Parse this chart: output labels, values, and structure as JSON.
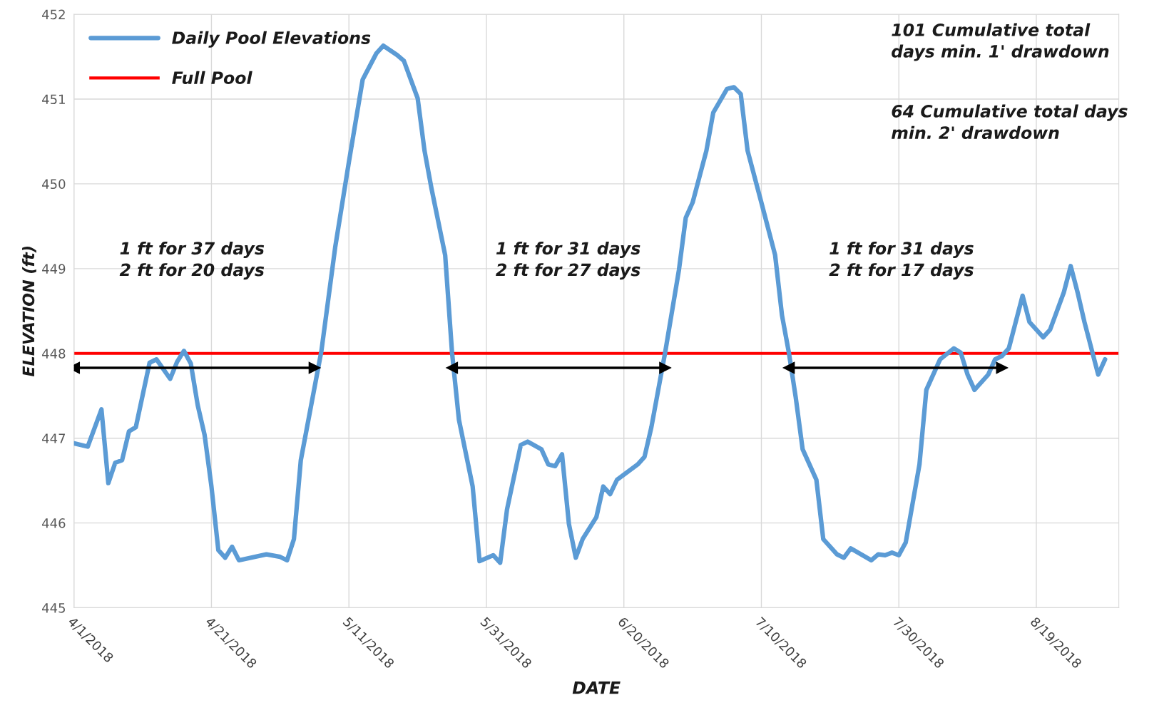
{
  "chart_data": {
    "type": "line",
    "xlabel": "DATE",
    "ylabel": "ELEVATION (ft)",
    "xlim": [
      "2018-04-01",
      "2018-08-31"
    ],
    "ylim": [
      445,
      452
    ],
    "yticks": [
      445,
      446,
      447,
      448,
      449,
      450,
      451,
      452
    ],
    "xticks": [
      {
        "value": "2018-04-01",
        "label": "4/1/2018"
      },
      {
        "value": "2018-04-21",
        "label": "4/21/2018"
      },
      {
        "value": "2018-05-11",
        "label": "5/11/2018"
      },
      {
        "value": "2018-05-31",
        "label": "5/31/2018"
      },
      {
        "value": "2018-06-20",
        "label": "6/20/2018"
      },
      {
        "value": "2018-07-10",
        "label": "7/10/2018"
      },
      {
        "value": "2018-07-30",
        "label": "7/30/2018"
      },
      {
        "value": "2018-08-19",
        "label": "8/19/2018"
      }
    ],
    "grid": true,
    "legend": "top left",
    "series": [
      {
        "name": "Daily Pool Elevations",
        "color": "#5b9bd5",
        "x": [
          "2018-04-01",
          "2018-04-03",
          "2018-04-05",
          "2018-04-06",
          "2018-04-07",
          "2018-04-08",
          "2018-04-09",
          "2018-04-10",
          "2018-04-12",
          "2018-04-13",
          "2018-04-15",
          "2018-04-16",
          "2018-04-17",
          "2018-04-18",
          "2018-04-19",
          "2018-04-20",
          "2018-04-21",
          "2018-04-22",
          "2018-04-23",
          "2018-04-24",
          "2018-04-25",
          "2018-04-29",
          "2018-05-01",
          "2018-05-02",
          "2018-05-03",
          "2018-05-04",
          "2018-05-07",
          "2018-05-09",
          "2018-05-11",
          "2018-05-13",
          "2018-05-15",
          "2018-05-16",
          "2018-05-18",
          "2018-05-19",
          "2018-05-21",
          "2018-05-22",
          "2018-05-23",
          "2018-05-25",
          "2018-05-26",
          "2018-05-27",
          "2018-05-29",
          "2018-05-30",
          "2018-06-01",
          "2018-06-02",
          "2018-06-03",
          "2018-06-05",
          "2018-06-06",
          "2018-06-08",
          "2018-06-09",
          "2018-06-10",
          "2018-06-11",
          "2018-06-12",
          "2018-06-13",
          "2018-06-14",
          "2018-06-16",
          "2018-06-17",
          "2018-06-18",
          "2018-06-19",
          "2018-06-22",
          "2018-06-23",
          "2018-06-24",
          "2018-06-26",
          "2018-06-28",
          "2018-06-29",
          "2018-06-30",
          "2018-07-02",
          "2018-07-03",
          "2018-07-05",
          "2018-07-06",
          "2018-07-07",
          "2018-07-08",
          "2018-07-10",
          "2018-07-12",
          "2018-07-13",
          "2018-07-14",
          "2018-07-15",
          "2018-07-16",
          "2018-07-18",
          "2018-07-19",
          "2018-07-21",
          "2018-07-22",
          "2018-07-23",
          "2018-07-26",
          "2018-07-27",
          "2018-07-28",
          "2018-07-29",
          "2018-07-30",
          "2018-07-31",
          "2018-08-02",
          "2018-08-03",
          "2018-08-05",
          "2018-08-07",
          "2018-08-08",
          "2018-08-09",
          "2018-08-10",
          "2018-08-12",
          "2018-08-13",
          "2018-08-14",
          "2018-08-15",
          "2018-08-16",
          "2018-08-17",
          "2018-08-18",
          "2018-08-20",
          "2018-08-21",
          "2018-08-23",
          "2018-08-24",
          "2018-08-25",
          "2018-08-26",
          "2018-08-28",
          "2018-08-29"
        ],
        "values": [
          446.94,
          446.9,
          447.34,
          446.47,
          446.71,
          446.74,
          447.08,
          447.13,
          447.89,
          447.93,
          447.7,
          447.9,
          448.03,
          447.88,
          447.39,
          447.04,
          446.43,
          445.68,
          445.59,
          445.72,
          445.56,
          445.63,
          445.6,
          445.56,
          445.81,
          446.74,
          448.03,
          449.25,
          450.26,
          451.23,
          451.54,
          451.63,
          451.52,
          451.45,
          451.01,
          450.39,
          449.95,
          449.16,
          448.01,
          447.22,
          446.43,
          445.55,
          445.62,
          445.53,
          446.16,
          446.92,
          446.96,
          446.87,
          446.69,
          446.67,
          446.81,
          445.99,
          445.59,
          445.81,
          446.07,
          446.43,
          446.34,
          446.51,
          446.69,
          446.78,
          447.13,
          448.01,
          448.98,
          449.6,
          449.78,
          450.39,
          450.84,
          451.12,
          451.14,
          451.06,
          450.39,
          449.78,
          449.16,
          448.45,
          448.01,
          447.48,
          446.87,
          446.51,
          445.81,
          445.63,
          445.59,
          445.7,
          445.56,
          445.63,
          445.62,
          445.65,
          445.62,
          445.77,
          446.69,
          447.57,
          447.93,
          448.06,
          448.01,
          447.75,
          447.57,
          447.75,
          447.93,
          447.97,
          448.06,
          448.37,
          448.68,
          448.37,
          448.19,
          448.28,
          448.72,
          449.03,
          448.72,
          448.37,
          447.75,
          447.93
        ]
      },
      {
        "type": "line",
        "color": "#000000",
        "marker": "triangle",
        "x": [
          "2018-04-01",
          "2018-05-06"
        ],
        "values": [
          447.83,
          447.83
        ]
      },
      {
        "type": "line",
        "color": "#000000",
        "marker": "triangle",
        "x": [
          "2018-05-26",
          "2018-06-26"
        ],
        "values": [
          447.83,
          447.83
        ]
      },
      {
        "type": "line",
        "color": "#000000",
        "marker": "triangle",
        "x": [
          "2018-07-14",
          "2018-08-14"
        ],
        "values": [
          447.83,
          447.83
        ]
      }
    ],
    "ref_lines": [
      {
        "axis": "y",
        "value": 448,
        "label": "Full Pool",
        "color": "#ff0000"
      }
    ],
    "annotations": [
      "1 ft for 37 days\n2 ft for 20 days",
      "1 ft for 31 days\n2 ft for 27 days",
      "1 ft for 31 days\n2 ft for 17 days",
      "101 Cumulative total\ndays min. 1' drawdown",
      "64 Cumulative total days\nmin. 2' drawdown"
    ]
  }
}
